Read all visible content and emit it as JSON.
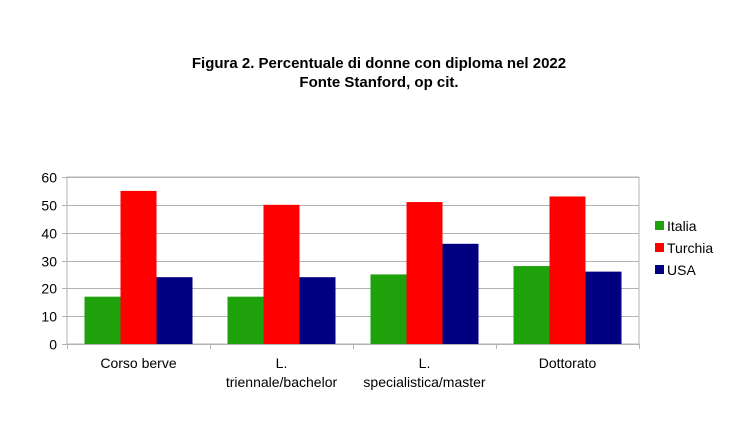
{
  "chart_data": {
    "type": "bar",
    "title": [
      "Figura 2. Percentuale di donne  con diploma nel 2022",
      "Fonte Stanford, op cit."
    ],
    "categories": [
      [
        "Corso berve"
      ],
      [
        "L.",
        "triennale/bachelor"
      ],
      [
        "L.",
        "specialistica/master"
      ],
      [
        "Dottorato"
      ]
    ],
    "series": [
      {
        "name": "Italia",
        "color": "#1ea10b",
        "values": [
          17,
          17,
          25,
          28
        ]
      },
      {
        "name": "Turchia",
        "color": "#ff0000",
        "values": [
          55,
          50,
          51,
          53
        ]
      },
      {
        "name": "USA",
        "color": "#000080",
        "values": [
          24,
          24,
          36,
          26
        ]
      }
    ],
    "ylim": [
      0,
      60
    ],
    "yticks": [
      0,
      10,
      20,
      30,
      40,
      50,
      60
    ],
    "grid": true,
    "legend": "right"
  }
}
